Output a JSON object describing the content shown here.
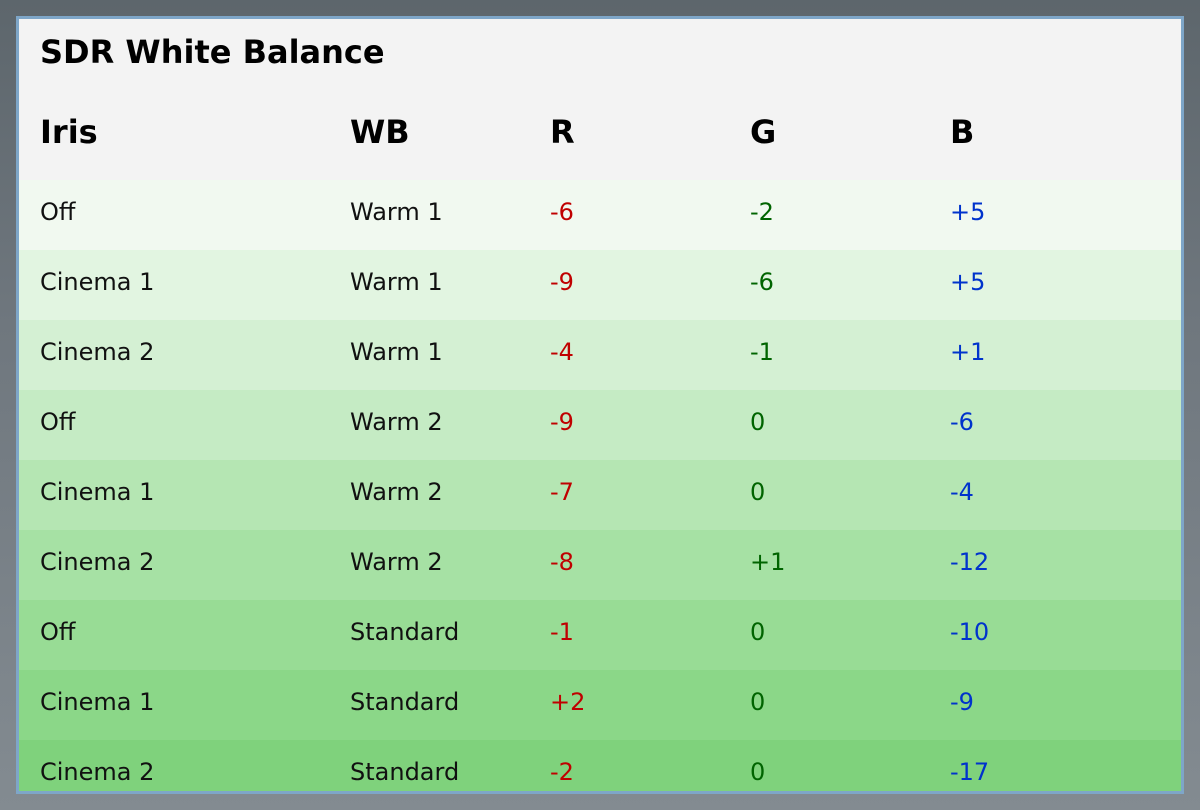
{
  "title": "SDR White Balance",
  "columns": [
    "Iris",
    "WB",
    "R",
    "G",
    "B"
  ],
  "rows": [
    {
      "iris": "Off",
      "wb": "Warm 1",
      "r": "-6",
      "g": "-2",
      "b": "+5",
      "bg": "#f1f9f0"
    },
    {
      "iris": "Cinema 1",
      "wb": "Warm 1",
      "r": "-9",
      "g": "-6",
      "b": "+5",
      "bg": "#e2f5e1"
    },
    {
      "iris": "Cinema 2",
      "wb": "Warm 1",
      "r": "-4",
      "g": "-1",
      "b": "+1",
      "bg": "#d4f0d3"
    },
    {
      "iris": "Off",
      "wb": "Warm 2",
      "r": "-9",
      "g": "0",
      "b": "-6",
      "bg": "#c5ebc4"
    },
    {
      "iris": "Cinema 1",
      "wb": "Warm 2",
      "r": "-7",
      "g": "0",
      "b": "-4",
      "bg": "#b5e6b3"
    },
    {
      "iris": "Cinema 2",
      "wb": "Warm 2",
      "r": "-8",
      "g": "+1",
      "b": "-12",
      "bg": "#a6e1a4"
    },
    {
      "iris": "Off",
      "wb": "Standard",
      "r": "-1",
      "g": "0",
      "b": "-10",
      "bg": "#98dc95"
    },
    {
      "iris": "Cinema 1",
      "wb": "Standard",
      "r": "+2",
      "g": "0",
      "b": "-9",
      "bg": "#8bd788"
    },
    {
      "iris": "Cinema 2",
      "wb": "Standard",
      "r": "-2",
      "g": "0",
      "b": "-17",
      "bg": "#7fd27c"
    }
  ],
  "colors": {
    "r_value": "#c00000",
    "g_value": "#006400",
    "b_value": "#0033cc",
    "panel_border": "#7ea6c8"
  }
}
